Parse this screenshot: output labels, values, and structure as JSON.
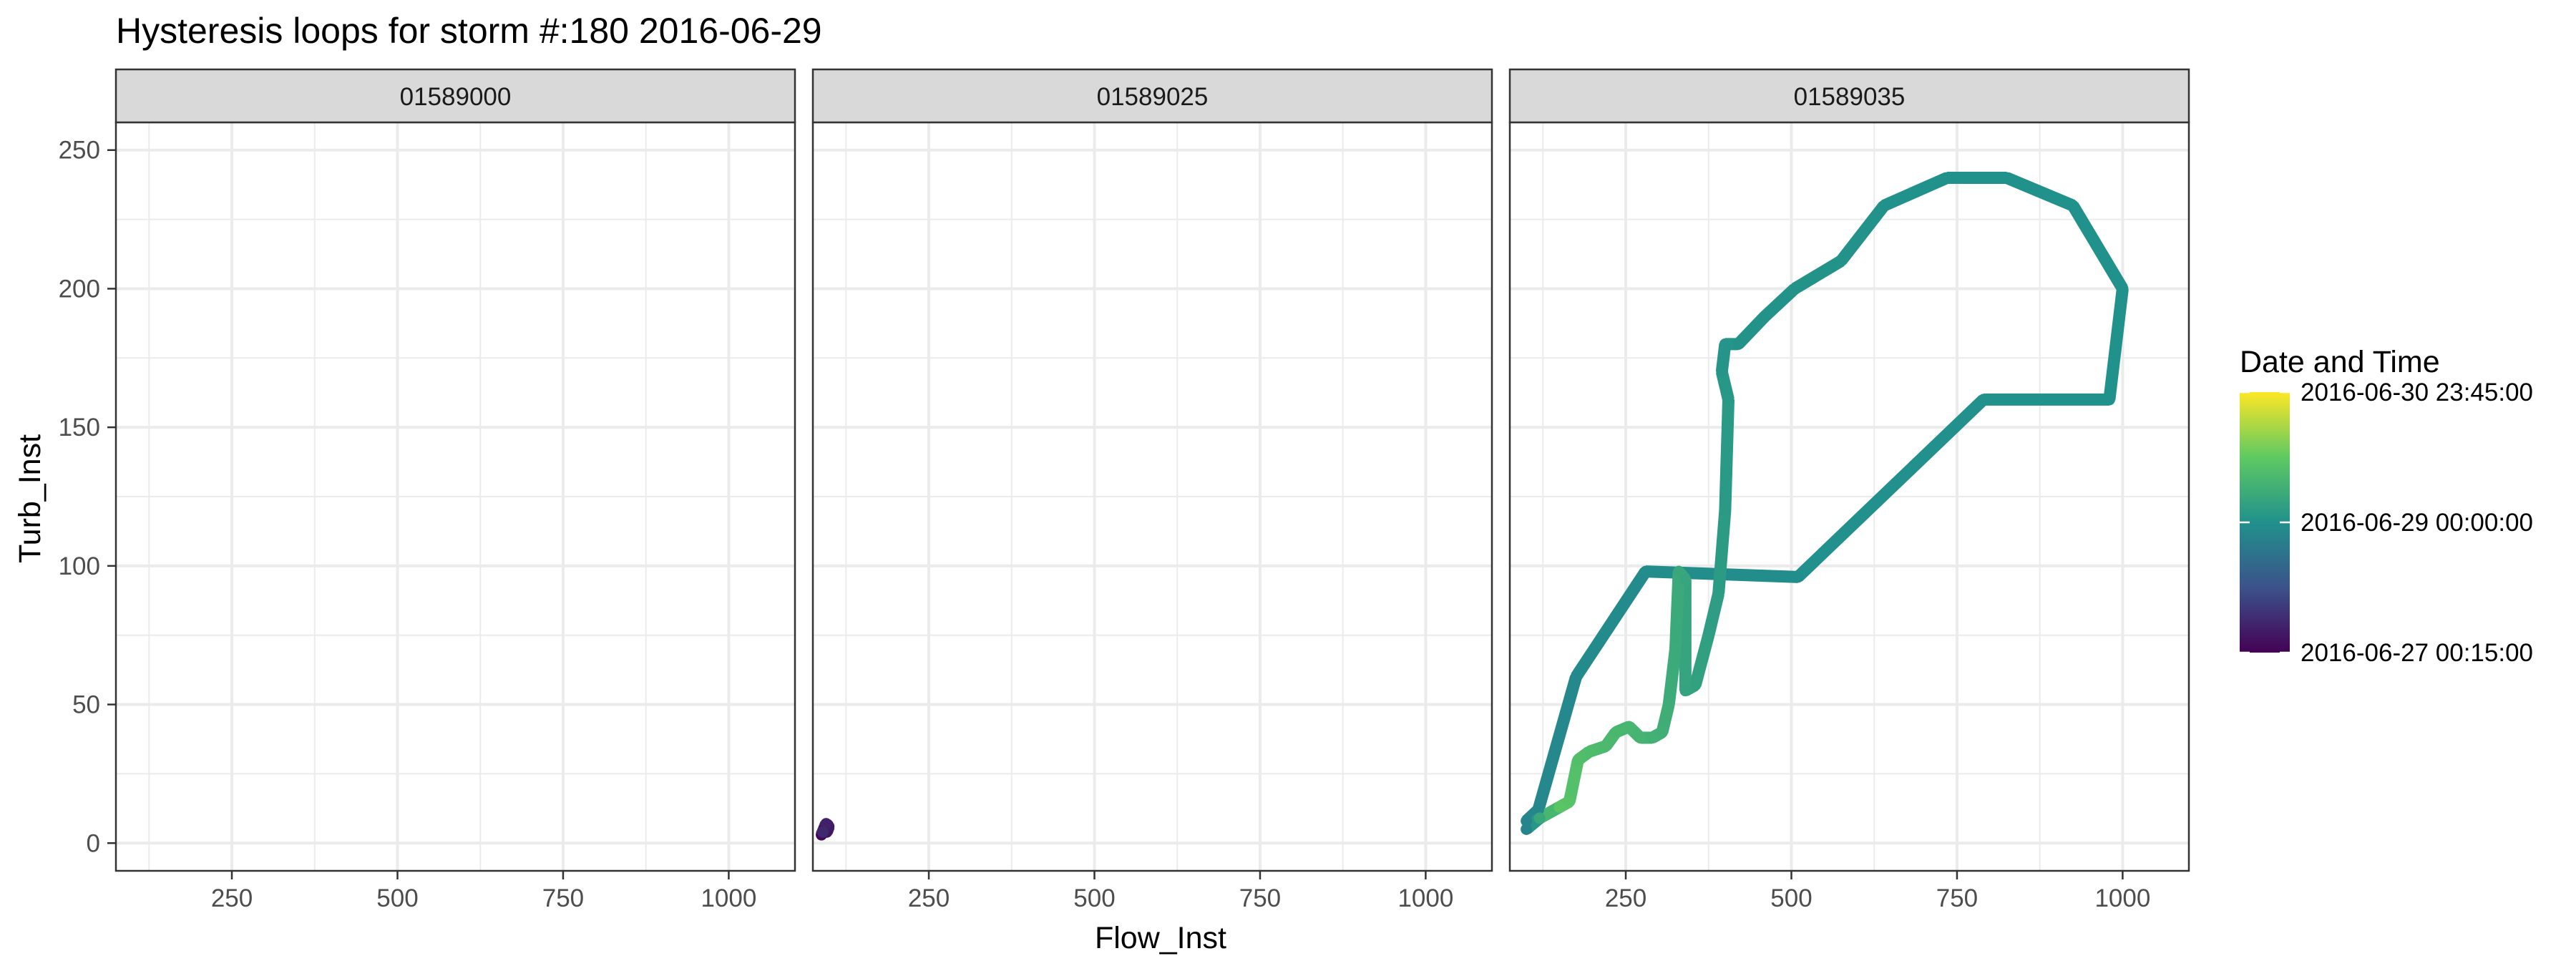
{
  "chart_data": {
    "type": "line",
    "title": "Hysteresis loops for storm #:180   2016-06-29",
    "xlabel": "Flow_Inst",
    "ylabel": "Turb_Inst",
    "xlim": [
      75,
      1100
    ],
    "ylim": [
      -10,
      260
    ],
    "x_ticks": [
      250,
      500,
      750,
      1000
    ],
    "y_ticks": [
      0,
      50,
      100,
      150,
      200,
      250
    ],
    "grid": true,
    "facets": [
      {
        "label": "01589000",
        "points": []
      },
      {
        "label": "01589025",
        "points": [
          {
            "x": 88,
            "y": 3,
            "t": 0.02
          },
          {
            "x": 92,
            "y": 5,
            "t": 0.04
          },
          {
            "x": 96,
            "y": 4,
            "t": 0.06
          },
          {
            "x": 99,
            "y": 6,
            "t": 0.08
          },
          {
            "x": 95,
            "y": 7,
            "t": 0.1
          },
          {
            "x": 90,
            "y": 4,
            "t": 0.12
          }
        ]
      },
      {
        "label": "01589035",
        "points": [
          {
            "x": 100,
            "y": 8,
            "t": 0.45
          },
          {
            "x": 118,
            "y": 12,
            "t": 0.46
          },
          {
            "x": 175,
            "y": 60,
            "t": 0.47
          },
          {
            "x": 280,
            "y": 98,
            "t": 0.48
          },
          {
            "x": 510,
            "y": 96,
            "t": 0.49
          },
          {
            "x": 790,
            "y": 160,
            "t": 0.5
          },
          {
            "x": 980,
            "y": 160,
            "t": 0.5
          },
          {
            "x": 1000,
            "y": 200,
            "t": 0.5
          },
          {
            "x": 925,
            "y": 230,
            "t": 0.5
          },
          {
            "x": 825,
            "y": 240,
            "t": 0.5
          },
          {
            "x": 735,
            "y": 240,
            "t": 0.5
          },
          {
            "x": 640,
            "y": 230,
            "t": 0.5
          },
          {
            "x": 575,
            "y": 210,
            "t": 0.51
          },
          {
            "x": 505,
            "y": 200,
            "t": 0.51
          },
          {
            "x": 460,
            "y": 190,
            "t": 0.51
          },
          {
            "x": 420,
            "y": 180,
            "t": 0.51
          },
          {
            "x": 400,
            "y": 180,
            "t": 0.52
          },
          {
            "x": 395,
            "y": 170,
            "t": 0.52
          },
          {
            "x": 405,
            "y": 160,
            "t": 0.53
          },
          {
            "x": 400,
            "y": 120,
            "t": 0.54
          },
          {
            "x": 390,
            "y": 90,
            "t": 0.55
          },
          {
            "x": 375,
            "y": 75,
            "t": 0.56
          },
          {
            "x": 355,
            "y": 57,
            "t": 0.57
          },
          {
            "x": 340,
            "y": 55,
            "t": 0.58
          },
          {
            "x": 340,
            "y": 95,
            "t": 0.59
          },
          {
            "x": 330,
            "y": 98,
            "t": 0.6
          },
          {
            "x": 325,
            "y": 70,
            "t": 0.61
          },
          {
            "x": 315,
            "y": 50,
            "t": 0.62
          },
          {
            "x": 305,
            "y": 40,
            "t": 0.63
          },
          {
            "x": 290,
            "y": 38,
            "t": 0.64
          },
          {
            "x": 272,
            "y": 38,
            "t": 0.65
          },
          {
            "x": 255,
            "y": 42,
            "t": 0.66
          },
          {
            "x": 235,
            "y": 40,
            "t": 0.67
          },
          {
            "x": 220,
            "y": 35,
            "t": 0.68
          },
          {
            "x": 195,
            "y": 33,
            "t": 0.69
          },
          {
            "x": 178,
            "y": 30,
            "t": 0.7
          },
          {
            "x": 165,
            "y": 15,
            "t": 0.72
          },
          {
            "x": 150,
            "y": 13,
            "t": 0.73
          },
          {
            "x": 120,
            "y": 9,
            "t": 0.6
          },
          {
            "x": 100,
            "y": 5,
            "t": 0.45
          }
        ]
      }
    ],
    "legend": {
      "title": "Date and Time",
      "position": "right",
      "labels": [
        "2016-06-30 23:45:00",
        "2016-06-29 00:00:00",
        "2016-06-27 00:15:00"
      ],
      "label_positions": [
        1.0,
        0.5,
        0.0
      ]
    },
    "colormap": [
      "#440154",
      "#3b528b",
      "#21918c",
      "#5ec962",
      "#fde725"
    ],
    "panel_border": "#333333",
    "strip_fill": "#d9d9d9",
    "grid_color": "#ebebeb"
  }
}
